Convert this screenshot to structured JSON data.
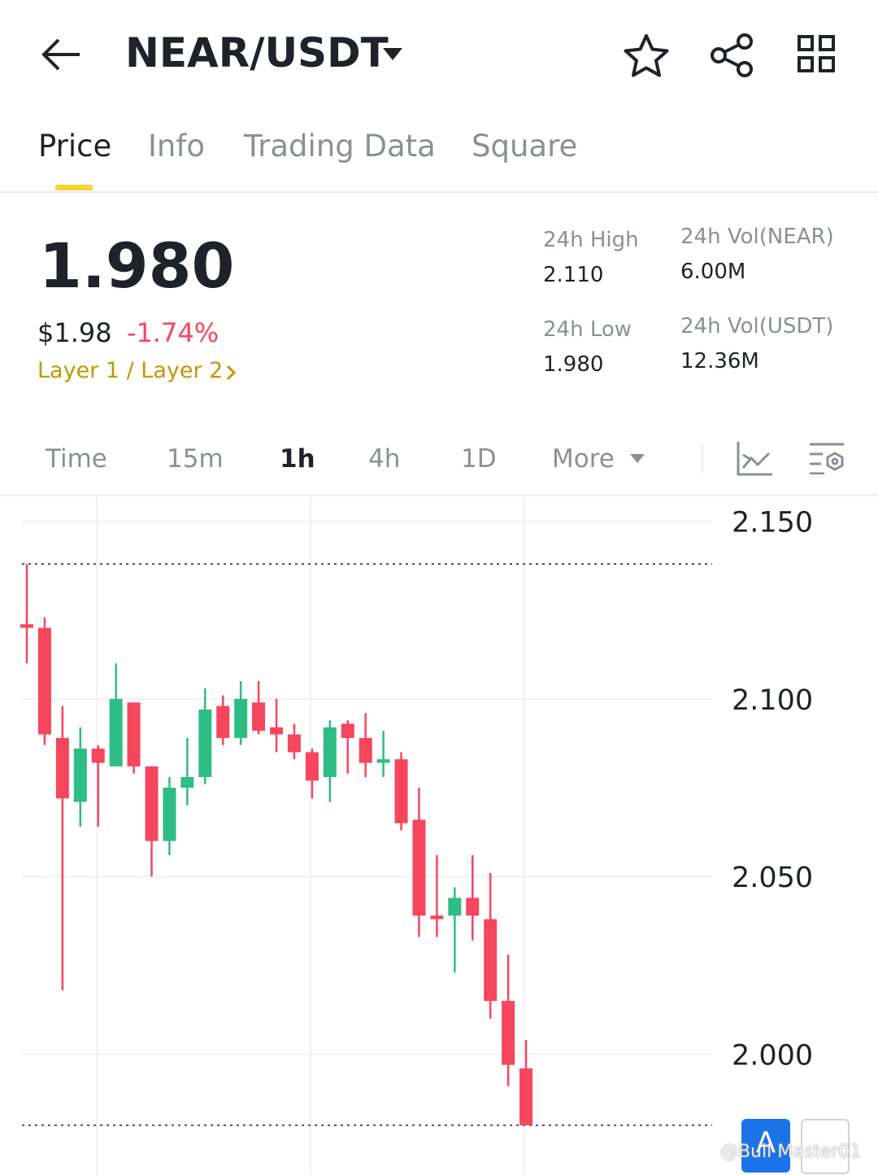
{
  "header": {
    "pair": "NEAR/USDT"
  },
  "tabs": [
    "Price",
    "Info",
    "Trading Data",
    "Square"
  ],
  "ticker": {
    "price": "1.980",
    "usd_price": "$1.98",
    "change": "-1.74%",
    "tag": "Layer 1 / Layer 2",
    "stats": [
      {
        "label": "24h High",
        "value": "2.110"
      },
      {
        "label": "24h Vol(NEAR)",
        "value": "6.00M"
      },
      {
        "label": "24h Low",
        "value": "1.980"
      },
      {
        "label": "24h Vol(USDT)",
        "value": "12.36M"
      }
    ]
  },
  "intervals": [
    "Time",
    "15m",
    "1h",
    "4h",
    "1D",
    "More"
  ],
  "buttons": [
    "A"
  ],
  "watermark": "@Bull Master01",
  "chart_data": {
    "type": "candlestick",
    "up_color": "#2ebd85",
    "down_color": "#f6465d",
    "ylim": [
      1.966,
      2.157
    ],
    "yticks": [
      {
        "value": 2.15,
        "label": "2.150"
      },
      {
        "value": 2.1,
        "label": "2.100"
      },
      {
        "value": 2.05,
        "label": "2.050"
      },
      {
        "value": 2.0,
        "label": "2.000"
      }
    ],
    "grid": true,
    "open": [
      2.121,
      2.12,
      2.089,
      2.071,
      2.086,
      2.081,
      2.099,
      2.081,
      2.06,
      2.075,
      2.078,
      2.098,
      2.089,
      2.099,
      2.092,
      2.09,
      2.085,
      2.078,
      2.093,
      2.089,
      2.082,
      2.083,
      2.066,
      2.039,
      2.039,
      2.044,
      2.038,
      2.015,
      1.996
    ],
    "high": [
      2.138,
      2.123,
      2.098,
      2.092,
      2.087,
      2.11,
      2.099,
      2.081,
      2.078,
      2.089,
      2.103,
      2.101,
      2.105,
      2.105,
      2.1,
      2.093,
      2.086,
      2.094,
      2.094,
      2.096,
      2.091,
      2.085,
      2.075,
      2.056,
      2.047,
      2.056,
      2.051,
      2.028,
      2.004
    ],
    "low": [
      2.11,
      2.087,
      2.018,
      2.064,
      2.064,
      2.081,
      2.079,
      2.05,
      2.056,
      2.07,
      2.076,
      2.087,
      2.087,
      2.09,
      2.085,
      2.083,
      2.072,
      2.071,
      2.079,
      2.078,
      2.078,
      2.063,
      2.033,
      2.033,
      2.023,
      2.032,
      2.01,
      1.991,
      1.98
    ],
    "close": [
      2.12,
      2.09,
      2.072,
      2.086,
      2.082,
      2.1,
      2.081,
      2.06,
      2.075,
      2.078,
      2.097,
      2.089,
      2.1,
      2.091,
      2.09,
      2.085,
      2.077,
      2.092,
      2.089,
      2.082,
      2.083,
      2.065,
      2.039,
      2.038,
      2.044,
      2.039,
      2.015,
      1.997,
      1.98
    ]
  }
}
